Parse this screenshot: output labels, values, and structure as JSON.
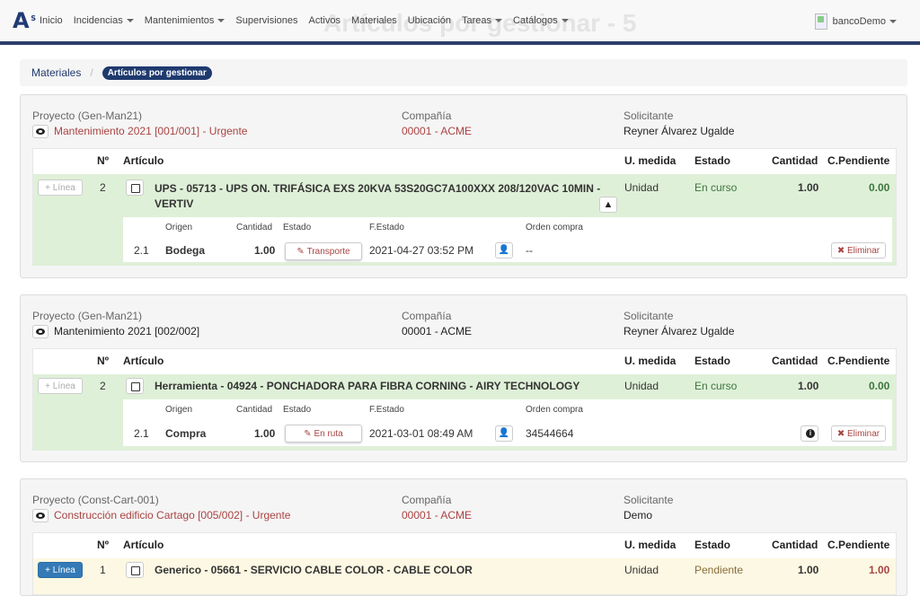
{
  "page_title": "Artículos por gestionar - 5",
  "nav": {
    "items": [
      {
        "label": "Inicio",
        "dropdown": false
      },
      {
        "label": "Incidencias",
        "dropdown": true
      },
      {
        "label": "Mantenimientos",
        "dropdown": true
      },
      {
        "label": "Supervisiones",
        "dropdown": false
      },
      {
        "label": "Activos",
        "dropdown": false
      },
      {
        "label": "Materiales",
        "dropdown": false
      },
      {
        "label": "Ubicación",
        "dropdown": false
      },
      {
        "label": "Tareas",
        "dropdown": true
      },
      {
        "label": "Catálogos",
        "dropdown": true
      }
    ],
    "user": "bancoDemo"
  },
  "breadcrumb": {
    "link": "Materiales",
    "current": "Artículos por gestionar"
  },
  "labels": {
    "proyecto_prefix": "Proyecto",
    "compania": "Compañía",
    "solicitante": "Solicitante",
    "col_no": "Nº",
    "col_articulo": "Artículo",
    "col_um": "U. medida",
    "col_estado": "Estado",
    "col_cantidad": "Cantidad",
    "col_pendiente": "C.Pendiente",
    "sub_origen": "Origen",
    "sub_cantidad": "Cantidad",
    "sub_estado": "Estado",
    "sub_festado": "F.Estado",
    "sub_orden": "Orden compra",
    "linea": "+ Línea",
    "eliminar": "Eliminar"
  },
  "panels": [
    {
      "proyecto": "Proyecto (Gen-Man21)",
      "mantenimiento": "Mantenimiento 2021 [001/001] - Urgente",
      "urgente": true,
      "compania": "00001 - ACME",
      "solicitante": "Reyner Álvarez Ugalde",
      "row": {
        "no": "2",
        "articulo_l1": "UPS - 05713 - UPS ON. TRIFÁSICA EXS 20KVA 53S20GC7A100XXX 208/120VAC 10MIN -",
        "articulo_l2": "VERTIV",
        "um": "Unidad",
        "estado": "En curso",
        "cantidad": "1.00",
        "pendiente": "0.00",
        "tone": "green",
        "warn": true
      },
      "sub": {
        "no": "2.1",
        "origen": "Bodega",
        "cantidad": "1.00",
        "estado": "Transporte",
        "festado": "2021-04-27 03:52 PM",
        "orden": "--",
        "info": false
      }
    },
    {
      "proyecto": "Proyecto (Gen-Man21)",
      "mantenimiento": "Mantenimiento 2021 [002/002]",
      "urgente": false,
      "compania": "00001 - ACME",
      "solicitante": "Reyner Álvarez Ugalde",
      "row": {
        "no": "2",
        "articulo_l1": "Herramienta - 04924 - PONCHADORA PARA FIBRA CORNING - AIRY TECHNOLOGY",
        "articulo_l2": "",
        "um": "Unidad",
        "estado": "En curso",
        "cantidad": "1.00",
        "pendiente": "0.00",
        "tone": "green",
        "warn": false
      },
      "sub": {
        "no": "2.1",
        "origen": "Compra",
        "cantidad": "1.00",
        "estado": "En ruta",
        "festado": "2021-03-01 08:49 AM",
        "orden": "34544664",
        "info": true
      }
    },
    {
      "proyecto": "Proyecto (Const-Cart-001)",
      "mantenimiento": "Construcción edificio Cartago [005/002] - Urgente",
      "urgente": true,
      "compania": "00001 - ACME",
      "solicitante": "Demo",
      "row": {
        "no": "1",
        "articulo_l1": "Generico - 05661 - SERVICIO CABLE COLOR - CABLE COLOR",
        "articulo_l2": "",
        "um": "Unidad",
        "estado": "Pendiente",
        "cantidad": "1.00",
        "pendiente": "1.00",
        "tone": "yellow",
        "warn": false
      }
    }
  ]
}
